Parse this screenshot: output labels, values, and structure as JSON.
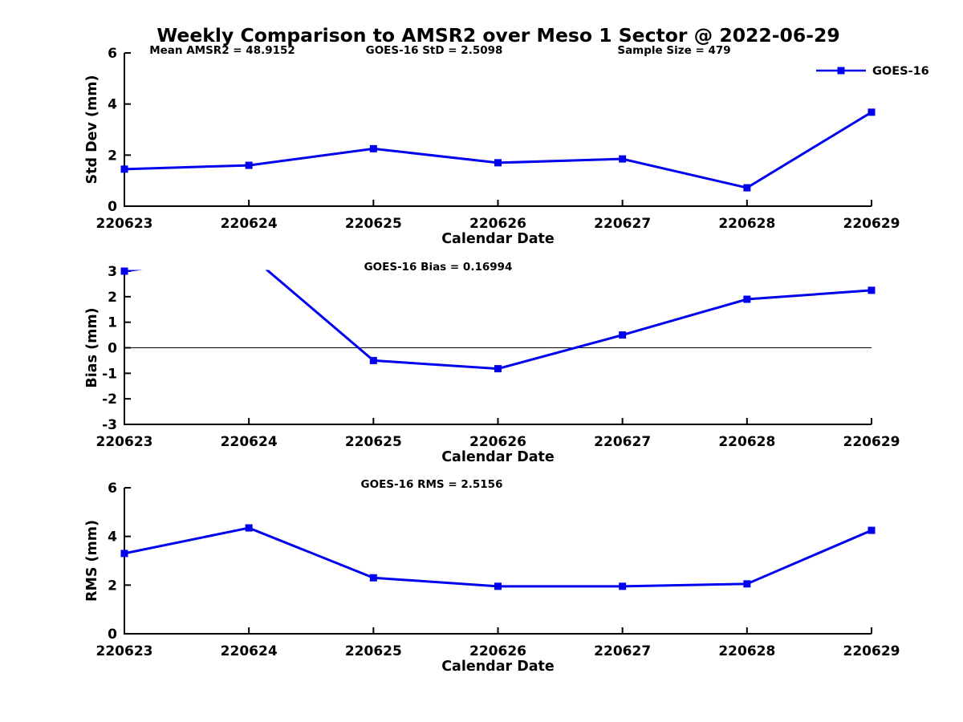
{
  "title": "Weekly Comparison to AMSR2 over Meso 1 Sector @ 2022-06-29",
  "legend": {
    "label": "GOES-16",
    "position": "top-right"
  },
  "colors": {
    "series": "#0000EE",
    "axis": "#000000",
    "text": "#000000",
    "background": "#FFFFFF"
  },
  "stats": {
    "mean_amsr2": 48.9152,
    "goes16_std": 2.5098,
    "sample_size": 479,
    "goes16_bias": 0.16994,
    "goes16_rms": 2.5156
  },
  "chart_data": [
    {
      "type": "line",
      "panel": "std-dev",
      "annotations": [
        "Mean AMSR2 = 48.9152",
        "GOES-16 StD = 2.5098",
        "Sample Size = 479"
      ],
      "xlabel": "Calendar Date",
      "ylabel": "Std Dev (mm)",
      "categories": [
        "220623",
        "220624",
        "220625",
        "220626",
        "220627",
        "220628",
        "220629"
      ],
      "series": [
        {
          "name": "GOES-16",
          "values": [
            1.45,
            1.6,
            2.25,
            1.7,
            1.85,
            0.72,
            3.68
          ]
        }
      ],
      "ylim": [
        0,
        6
      ],
      "yticks": [
        0,
        2,
        4,
        6
      ],
      "zero_line": false,
      "grid": false,
      "show_legend": true
    },
    {
      "type": "line",
      "panel": "bias",
      "annotations": [
        "GOES-16 Bias  = 0.16994"
      ],
      "xlabel": "Calendar Date",
      "ylabel": "Bias (mm)",
      "categories": [
        "220623",
        "220624",
        "220625",
        "220626",
        "220627",
        "220628",
        "220629"
      ],
      "series": [
        {
          "name": "GOES-16",
          "values": [
            3.0,
            3.65,
            -0.5,
            -0.82,
            0.5,
            1.9,
            2.25
          ]
        }
      ],
      "ylim": [
        -3,
        3
      ],
      "yticks": [
        -3,
        -2,
        -1,
        0,
        1,
        2,
        3
      ],
      "zero_line": true,
      "grid": false,
      "show_legend": false,
      "note": "220624 value exceeds y-axis maximum; line segment clipped at top of plot"
    },
    {
      "type": "line",
      "panel": "rms",
      "annotations": [
        "GOES-16 RMS = 2.5156"
      ],
      "xlabel": "Calendar Date",
      "ylabel": "RMS (mm)",
      "categories": [
        "220623",
        "220624",
        "220625",
        "220626",
        "220627",
        "220628",
        "220629"
      ],
      "series": [
        {
          "name": "GOES-16",
          "values": [
            3.3,
            4.35,
            2.3,
            1.95,
            1.95,
            2.05,
            4.25
          ]
        }
      ],
      "ylim": [
        0,
        6
      ],
      "yticks": [
        0,
        2,
        4,
        6
      ],
      "zero_line": false,
      "grid": false,
      "show_legend": false
    }
  ]
}
